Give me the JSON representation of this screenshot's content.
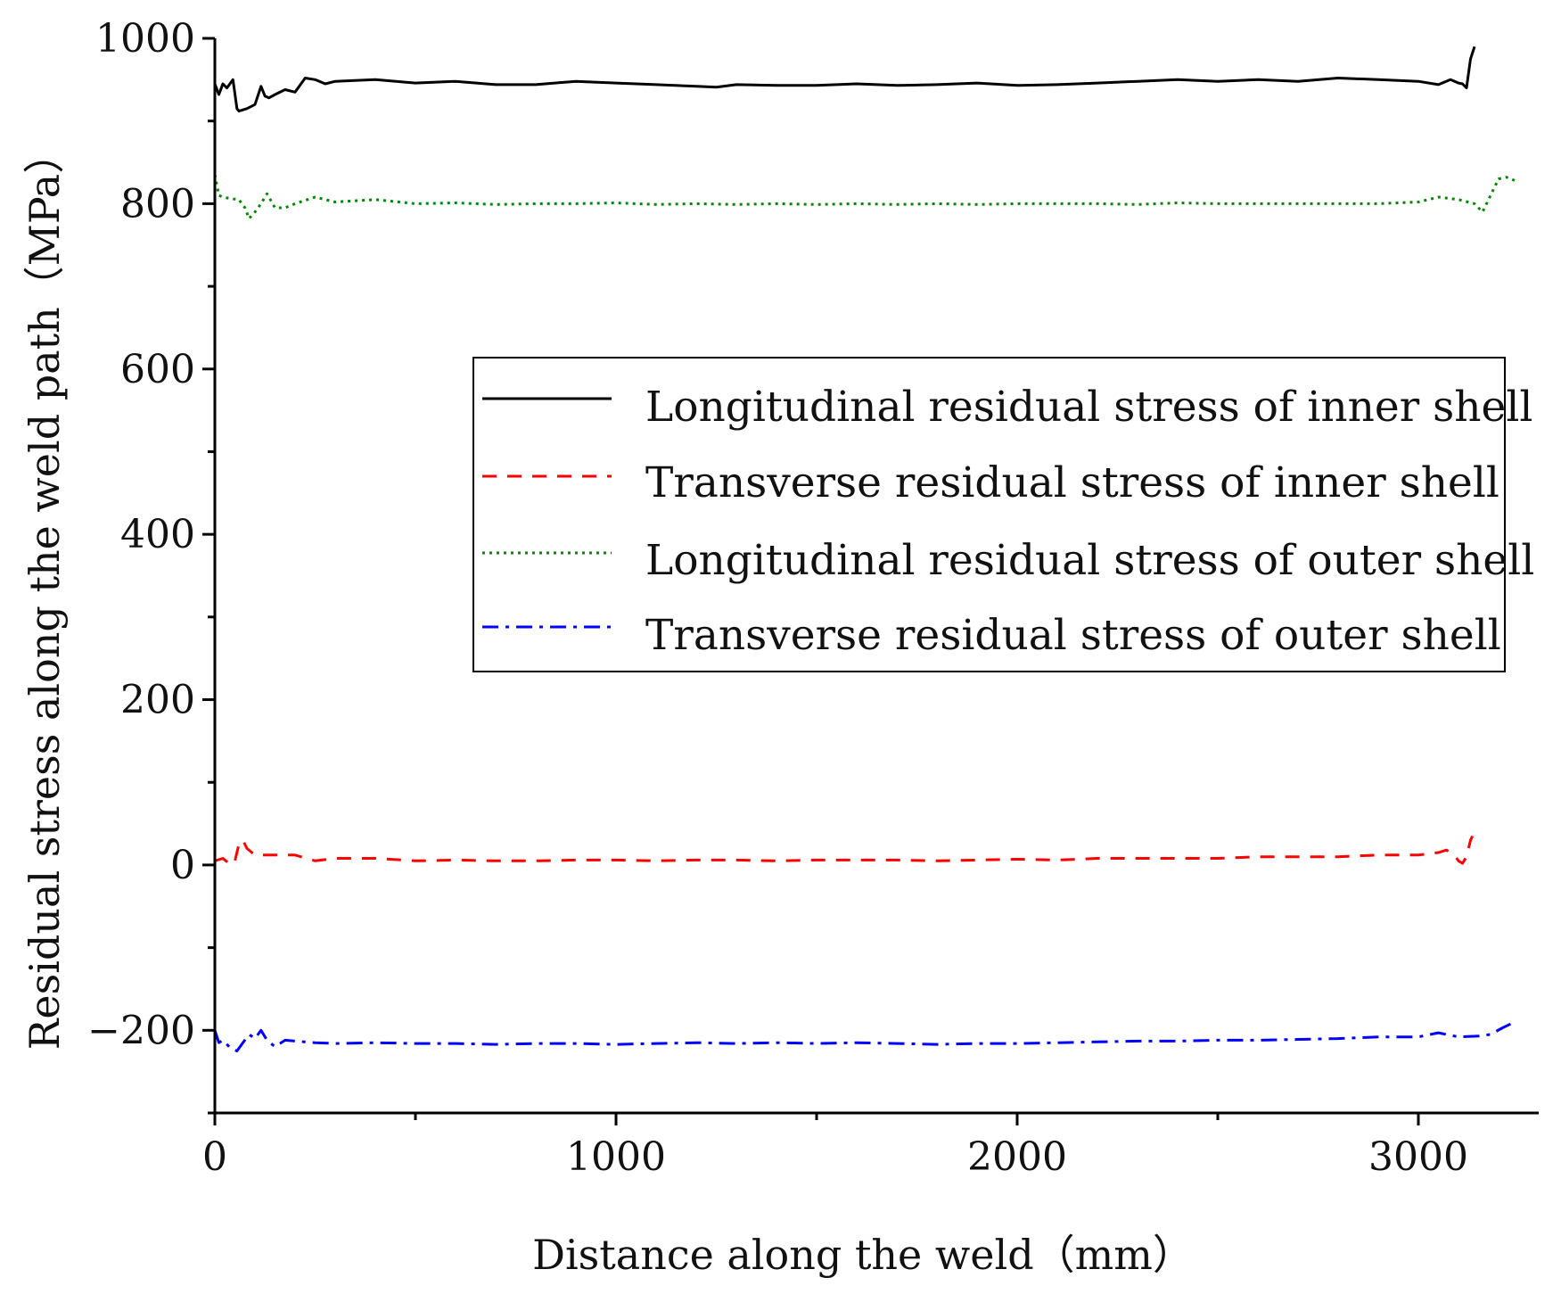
{
  "chart_data": {
    "type": "line",
    "title": "",
    "xlabel": "Distance along the weld（mm）",
    "ylabel": "Residual stress along the weld path（MPa）",
    "xlim": [
      0,
      3300
    ],
    "ylim": [
      -300,
      1000
    ],
    "xticks": [
      0,
      1000,
      2000,
      3000
    ],
    "xtick_labels": [
      "0",
      "1000",
      "2000",
      "3000"
    ],
    "xticks_minor": [
      500,
      1500,
      2500
    ],
    "yticks": [
      -200,
      0,
      200,
      400,
      600,
      800,
      1000
    ],
    "ytick_labels": [
      "−200",
      "0",
      "200",
      "400",
      "600",
      "800",
      "1000"
    ],
    "yticks_minor": [
      -300,
      -100,
      100,
      300,
      500,
      700,
      900
    ],
    "legend_position": "center-right",
    "series": [
      {
        "name": "Longitudinal residual stress of inner shell",
        "color": "#000000",
        "style": "solid",
        "x": [
          0,
          10,
          20,
          30,
          45,
          55,
          60,
          80,
          100,
          115,
          125,
          135,
          150,
          175,
          200,
          225,
          250,
          275,
          300,
          400,
          500,
          600,
          700,
          800,
          900,
          1000,
          1100,
          1200,
          1250,
          1300,
          1400,
          1500,
          1600,
          1700,
          1800,
          1900,
          2000,
          2100,
          2200,
          2300,
          2400,
          2500,
          2600,
          2700,
          2800,
          2900,
          3000,
          3050,
          3080,
          3100,
          3110,
          3120,
          3130,
          3140
        ],
        "y": [
          945,
          932,
          945,
          940,
          950,
          915,
          912,
          915,
          920,
          942,
          930,
          928,
          932,
          938,
          935,
          952,
          950,
          945,
          948,
          950,
          946,
          948,
          944,
          944,
          948,
          946,
          944,
          942,
          941,
          944,
          943,
          943,
          945,
          943,
          944,
          946,
          943,
          944,
          946,
          948,
          950,
          948,
          950,
          948,
          952,
          950,
          948,
          944,
          950,
          946,
          945,
          940,
          975,
          990
        ]
      },
      {
        "name": "Transverse residual stress of inner shell",
        "color": "#ff0000",
        "style": "dashed",
        "x": [
          0,
          20,
          40,
          50,
          60,
          70,
          80,
          100,
          150,
          200,
          250,
          300,
          400,
          500,
          600,
          700,
          800,
          900,
          1000,
          1100,
          1200,
          1300,
          1400,
          1500,
          1600,
          1700,
          1800,
          1900,
          2000,
          2100,
          2200,
          2300,
          2400,
          2500,
          2600,
          2700,
          2800,
          2900,
          3000,
          3050,
          3070,
          3090,
          3100,
          3110,
          3120,
          3130,
          3135
        ],
        "y": [
          5,
          8,
          0,
          5,
          25,
          30,
          20,
          12,
          12,
          12,
          5,
          8,
          8,
          5,
          6,
          5,
          5,
          6,
          6,
          5,
          6,
          6,
          5,
          6,
          6,
          6,
          5,
          6,
          7,
          6,
          8,
          8,
          8,
          8,
          10,
          10,
          10,
          12,
          12,
          15,
          18,
          12,
          5,
          2,
          10,
          30,
          35
        ]
      },
      {
        "name": "Longitudinal residual stress of outer shell",
        "color": "#008800",
        "style": "dotted",
        "x": [
          0,
          10,
          20,
          40,
          60,
          75,
          85,
          100,
          115,
          130,
          150,
          175,
          200,
          250,
          300,
          400,
          500,
          600,
          700,
          800,
          900,
          1000,
          1100,
          1200,
          1300,
          1400,
          1500,
          1600,
          1700,
          1800,
          1900,
          2000,
          2100,
          2200,
          2300,
          2400,
          2500,
          2600,
          2700,
          2800,
          2900,
          3000,
          3050,
          3100,
          3140,
          3160,
          3180,
          3200,
          3220,
          3240
        ],
        "y": [
          835,
          810,
          808,
          806,
          805,
          795,
          782,
          790,
          800,
          812,
          795,
          795,
          800,
          808,
          802,
          805,
          800,
          801,
          799,
          800,
          800,
          801,
          799,
          800,
          799,
          800,
          799,
          800,
          799,
          800,
          799,
          800,
          800,
          800,
          799,
          801,
          800,
          800,
          800,
          800,
          800,
          802,
          808,
          805,
          800,
          790,
          810,
          830,
          832,
          828
        ]
      },
      {
        "name": "Transverse residual stress of outer shell",
        "color": "#0000ff",
        "style": "dashdot",
        "x": [
          0,
          10,
          20,
          40,
          55,
          70,
          85,
          100,
          115,
          130,
          150,
          175,
          200,
          250,
          300,
          400,
          500,
          600,
          700,
          800,
          900,
          1000,
          1100,
          1200,
          1300,
          1400,
          1500,
          1600,
          1700,
          1800,
          1900,
          2000,
          2100,
          2200,
          2300,
          2400,
          2500,
          2600,
          2700,
          2800,
          2900,
          3000,
          3050,
          3100,
          3150,
          3180,
          3210,
          3240
        ],
        "y": [
          -200,
          -215,
          -212,
          -222,
          -225,
          -215,
          -205,
          -210,
          -200,
          -212,
          -220,
          -212,
          -213,
          -215,
          -216,
          -215,
          -216,
          -216,
          -217,
          -216,
          -216,
          -217,
          -216,
          -215,
          -216,
          -215,
          -216,
          -215,
          -216,
          -217,
          -216,
          -216,
          -215,
          -214,
          -213,
          -213,
          -212,
          -212,
          -211,
          -210,
          -208,
          -208,
          -203,
          -208,
          -207,
          -205,
          -197,
          -190
        ]
      }
    ]
  }
}
